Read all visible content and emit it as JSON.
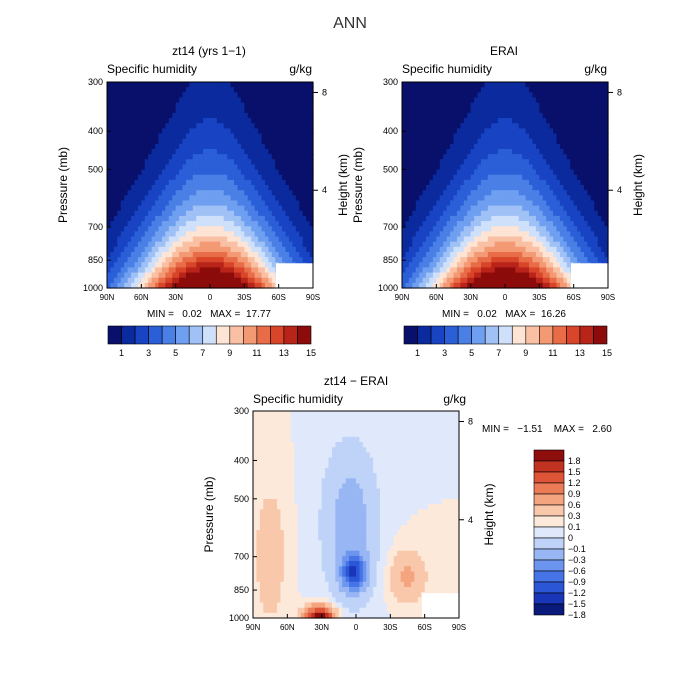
{
  "figure": {
    "title": "ANN"
  },
  "palettes": {
    "abs": [
      "#08106b",
      "#0a2a9e",
      "#1844c4",
      "#2a5fd8",
      "#4a7fe6",
      "#6f9ff0",
      "#9fc1f6",
      "#cfe0fb",
      "#fde4d4",
      "#f9c0a3",
      "#f39a74",
      "#e86c48",
      "#d84529",
      "#b8241a",
      "#8c0b0b"
    ],
    "diff": [
      "#0a1a7a",
      "#1a36b8",
      "#2b56d6",
      "#4674e6",
      "#6c95ef",
      "#98b6f4",
      "#bfd3f8",
      "#dfe9fb",
      "#fde9da",
      "#f9c8ab",
      "#f4a47f",
      "#ec7c58",
      "#dd5436",
      "#c23221",
      "#8e0d0d"
    ]
  },
  "panels": {
    "p1": {
      "title": "zt14 (yrs 1−1)",
      "left": "Specific humidity",
      "right": "g/kg",
      "stats": "MIN =   0.02   MAX =  17.77"
    },
    "p2": {
      "title": "ERAI",
      "left": "Specific humidity",
      "right": "g/kg",
      "stats": "MIN =   0.02   MAX =  16.26"
    },
    "p3": {
      "title": "zt14 − ERAI",
      "left": "Specific humidity",
      "right": "g/kg",
      "stats": "MIN =   −1.51    MAX =   2.60"
    }
  },
  "axis_labels": {
    "pressure": "Pressure (mb)",
    "height": "Height (km)"
  },
  "colorbars": {
    "abs_labels": [
      "1",
      "3",
      "5",
      "7",
      "9",
      "11",
      "13",
      "15"
    ],
    "diff_labels": [
      "1.8",
      "1.5",
      "1.2",
      "0.9",
      "0.6",
      "0.3",
      "0.1",
      "0",
      "−0.1",
      "−0.3",
      "−0.6",
      "−0.9",
      "−1.2",
      "−1.5",
      "−1.8"
    ]
  },
  "chart_data": [
    {
      "type": "heatmap",
      "title": "zt14 (yrs 1−1)",
      "subtitle": "Specific humidity",
      "units": "g/kg",
      "xlabel": "",
      "ylabel": "Pressure (mb)",
      "ylabel_right": "Height (km)",
      "x_ticks": [
        "90N",
        "60N",
        "30N",
        "0",
        "30S",
        "60S",
        "90S"
      ],
      "y_ticks": [
        300,
        400,
        500,
        700,
        850,
        1000
      ],
      "y_right_ticks": [
        8,
        4
      ],
      "ylim": [
        1000,
        300
      ],
      "min": 0.02,
      "max": 17.77,
      "peak_lat": 0,
      "levels": [
        1,
        2,
        3,
        4,
        5,
        6,
        7,
        8,
        9,
        10,
        11,
        12,
        13,
        14,
        15
      ]
    },
    {
      "type": "heatmap",
      "title": "ERAI",
      "subtitle": "Specific humidity",
      "units": "g/kg",
      "xlabel": "",
      "ylabel": "Pressure (mb)",
      "ylabel_right": "Height (km)",
      "x_ticks": [
        "90N",
        "60N",
        "30N",
        "0",
        "30S",
        "60S",
        "90S"
      ],
      "y_ticks": [
        300,
        400,
        500,
        700,
        850,
        1000
      ],
      "y_right_ticks": [
        8,
        4
      ],
      "ylim": [
        1000,
        300
      ],
      "min": 0.02,
      "max": 16.26,
      "peak_lat": 0,
      "levels": [
        1,
        2,
        3,
        4,
        5,
        6,
        7,
        8,
        9,
        10,
        11,
        12,
        13,
        14,
        15
      ]
    },
    {
      "type": "heatmap",
      "title": "zt14 − ERAI",
      "subtitle": "Specific humidity",
      "units": "g/kg",
      "xlabel": "",
      "ylabel": "Pressure (mb)",
      "ylabel_right": "Height (km)",
      "x_ticks": [
        "90N",
        "60N",
        "30N",
        "0",
        "30S",
        "60S",
        "90S"
      ],
      "y_ticks": [
        300,
        400,
        500,
        700,
        850,
        1000
      ],
      "y_right_ticks": [
        8,
        4
      ],
      "ylim": [
        1000,
        300
      ],
      "min": -1.51,
      "max": 2.6,
      "levels": [
        -1.8,
        -1.5,
        -1.2,
        -0.9,
        -0.6,
        -0.3,
        -0.1,
        0,
        0.1,
        0.3,
        0.6,
        0.9,
        1.2,
        1.5,
        1.8
      ]
    }
  ]
}
